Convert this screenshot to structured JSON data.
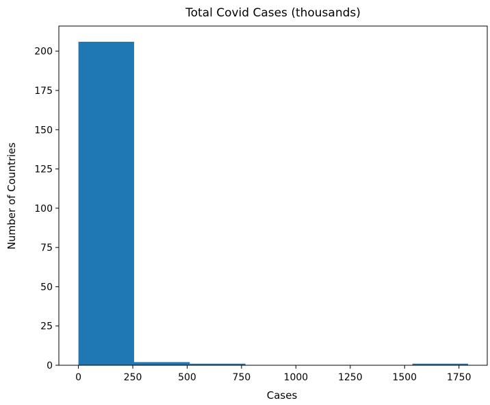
{
  "chart_data": {
    "type": "histogram",
    "title": "Total Covid Cases (thousands)",
    "xlabel": "Cases",
    "ylabel": "Number of Countries",
    "bins": [
      {
        "start": 0,
        "end": 256,
        "count": 206
      },
      {
        "start": 256,
        "end": 512,
        "count": 2
      },
      {
        "start": 512,
        "end": 768,
        "count": 1
      },
      {
        "start": 768,
        "end": 1024,
        "count": 0
      },
      {
        "start": 1024,
        "end": 1280,
        "count": 0
      },
      {
        "start": 1280,
        "end": 1536,
        "count": 0
      },
      {
        "start": 1536,
        "end": 1792,
        "count": 1
      }
    ],
    "xlim": [
      -90,
      1880
    ],
    "ylim": [
      0,
      216
    ],
    "xticks": [
      0,
      250,
      500,
      750,
      1000,
      1250,
      1500,
      1750
    ],
    "yticks": [
      0,
      25,
      50,
      75,
      100,
      125,
      150,
      175,
      200
    ],
    "bar_color": "#1f77b4",
    "grid": false
  }
}
